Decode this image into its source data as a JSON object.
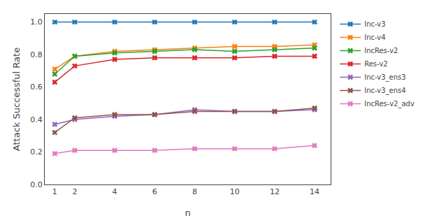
{
  "chart_data": {
    "type": "line",
    "x": [
      1,
      2,
      4,
      6,
      8,
      10,
      12,
      14
    ],
    "series": [
      {
        "name": "Inc-v3",
        "color": "#1f77b4",
        "marker": "x",
        "values": [
          1.0,
          1.0,
          1.0,
          1.0,
          1.0,
          1.0,
          1.0,
          1.0
        ]
      },
      {
        "name": "Inc-v4",
        "color": "#ff7f0e",
        "marker": "x",
        "values": [
          0.71,
          0.79,
          0.82,
          0.83,
          0.84,
          0.85,
          0.85,
          0.86
        ]
      },
      {
        "name": "IncRes-v2",
        "color": "#2ca02c",
        "marker": "x",
        "values": [
          0.68,
          0.79,
          0.81,
          0.82,
          0.83,
          0.82,
          0.83,
          0.84
        ]
      },
      {
        "name": "Res-v2",
        "color": "#d62728",
        "marker": "x",
        "values": [
          0.63,
          0.73,
          0.77,
          0.78,
          0.78,
          0.78,
          0.79,
          0.79
        ]
      },
      {
        "name": "Inc-v3_ens3",
        "color": "#9467bd",
        "marker": "x",
        "values": [
          0.37,
          0.4,
          0.42,
          0.43,
          0.46,
          0.45,
          0.45,
          0.46
        ]
      },
      {
        "name": "Inc-v3_ens4",
        "color": "#8c564b",
        "marker": "x",
        "values": [
          0.32,
          0.41,
          0.43,
          0.43,
          0.45,
          0.45,
          0.45,
          0.47
        ]
      },
      {
        "name": "IncRes-v2_adv",
        "color": "#e377c2",
        "marker": "x",
        "values": [
          0.19,
          0.21,
          0.21,
          0.21,
          0.22,
          0.22,
          0.22,
          0.24
        ]
      }
    ],
    "x_label": "n",
    "y_label": "Attack Successful Rate",
    "xlim": [
      0.5,
      14.8
    ],
    "xticks": [
      1,
      2,
      4,
      6,
      8,
      10,
      12,
      14
    ],
    "ylim": [
      0.0,
      1.05
    ],
    "yticks": [
      {
        "value": 0.0,
        "label": "0.0"
      },
      0.2,
      0.4,
      0.6,
      0.8,
      {
        "value": 1.0,
        "label": "1.0"
      }
    ],
    "grid": false,
    "legend": "upper right"
  }
}
